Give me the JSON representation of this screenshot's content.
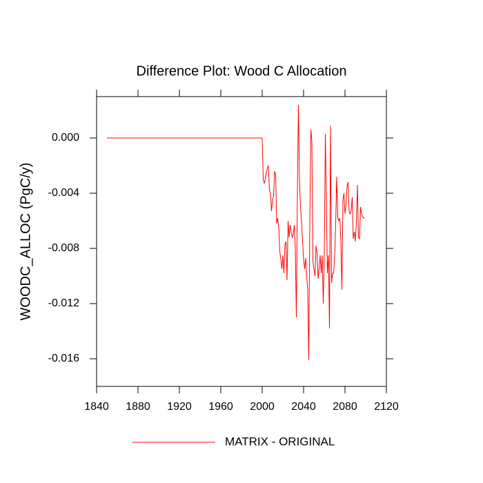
{
  "chart_data": {
    "type": "line",
    "title": "Difference Plot: Wood C Allocation",
    "ylabel": "WOODC_ALLOC  (PgC/y)",
    "x": [
      1850,
      2000,
      2001,
      2002,
      2003,
      2004,
      2005,
      2006,
      2007,
      2008,
      2009,
      2010,
      2011,
      2012,
      2013,
      2014,
      2015,
      2016,
      2017,
      2018,
      2019,
      2020,
      2021,
      2022,
      2023,
      2024,
      2025,
      2026,
      2027,
      2028,
      2029,
      2030,
      2031,
      2032,
      2033,
      2034,
      2035,
      2036,
      2037,
      2038,
      2039,
      2040,
      2041,
      2042,
      2043,
      2044,
      2045,
      2046,
      2047,
      2048,
      2049,
      2050,
      2051,
      2052,
      2053,
      2054,
      2055,
      2056,
      2057,
      2058,
      2059,
      2060,
      2061,
      2062,
      2063,
      2064,
      2065,
      2066,
      2067,
      2068,
      2069,
      2070,
      2071,
      2072,
      2073,
      2074,
      2075,
      2076,
      2077,
      2078,
      2079,
      2080,
      2081,
      2082,
      2083,
      2084,
      2085,
      2086,
      2087,
      2088,
      2089,
      2090,
      2091,
      2092,
      2093,
      2094,
      2095,
      2096,
      2097,
      2098,
      2099
    ],
    "series": [
      {
        "name": "MATRIX - ORIGINAL",
        "color": "#ff0000",
        "values": [
          0,
          0,
          -0.003,
          -0.0033,
          -0.003,
          -0.0025,
          -0.0022,
          -0.002,
          -0.0038,
          -0.004,
          -0.0053,
          -0.0045,
          -0.0042,
          -0.0024,
          -0.0027,
          -0.0062,
          -0.0058,
          -0.0065,
          -0.0082,
          -0.0088,
          -0.0095,
          -0.0085,
          -0.0098,
          -0.0077,
          -0.0075,
          -0.0103,
          -0.006,
          -0.0072,
          -0.0063,
          -0.0068,
          -0.0072,
          -0.007,
          -0.0063,
          -0.008,
          -0.013,
          -0.004,
          0.0024,
          -0.003,
          -0.005,
          -0.006,
          -0.0075,
          -0.0088,
          -0.0095,
          -0.0087,
          -0.01,
          -0.011,
          -0.0161,
          -0.006,
          0.0006,
          -0.0002,
          -0.009,
          -0.0095,
          -0.01,
          -0.0078,
          -0.0083,
          -0.0102,
          -0.0095,
          -0.0085,
          -0.0098,
          -0.0085,
          -0.012,
          -0.0085,
          0.0003,
          -0.0045,
          -0.0098,
          -0.0085,
          -0.0138,
          0.0009,
          -0.0105,
          -0.0098,
          -0.0098,
          -0.0085,
          -0.0062,
          -0.0028,
          -0.0058,
          -0.006,
          -0.0058,
          -0.0075,
          -0.011,
          -0.0045,
          -0.004,
          -0.0055,
          -0.0048,
          -0.0035,
          -0.0032,
          -0.0053,
          -0.0055,
          -0.0052,
          -0.0043,
          -0.0073,
          -0.0068,
          -0.0075,
          -0.006,
          -0.0034,
          -0.0072,
          -0.0073,
          -0.005,
          -0.0055,
          -0.0057,
          -0.0058,
          -0.0058
        ]
      }
    ],
    "xlim": [
      1840,
      2120
    ],
    "xticks": [
      1840,
      1880,
      1920,
      1960,
      2000,
      2040,
      2080,
      2120
    ],
    "ylim": [
      -0.018,
      0.003
    ],
    "yticks": [
      {
        "value": 0,
        "label": "0.000"
      },
      {
        "value": -0.004,
        "label": "-0.004"
      },
      {
        "value": -0.008,
        "label": "-0.008"
      },
      {
        "value": -0.012,
        "label": "-0.012"
      },
      {
        "value": -0.016,
        "label": "-0.016"
      }
    ],
    "grid": false,
    "legend": "bottom"
  }
}
